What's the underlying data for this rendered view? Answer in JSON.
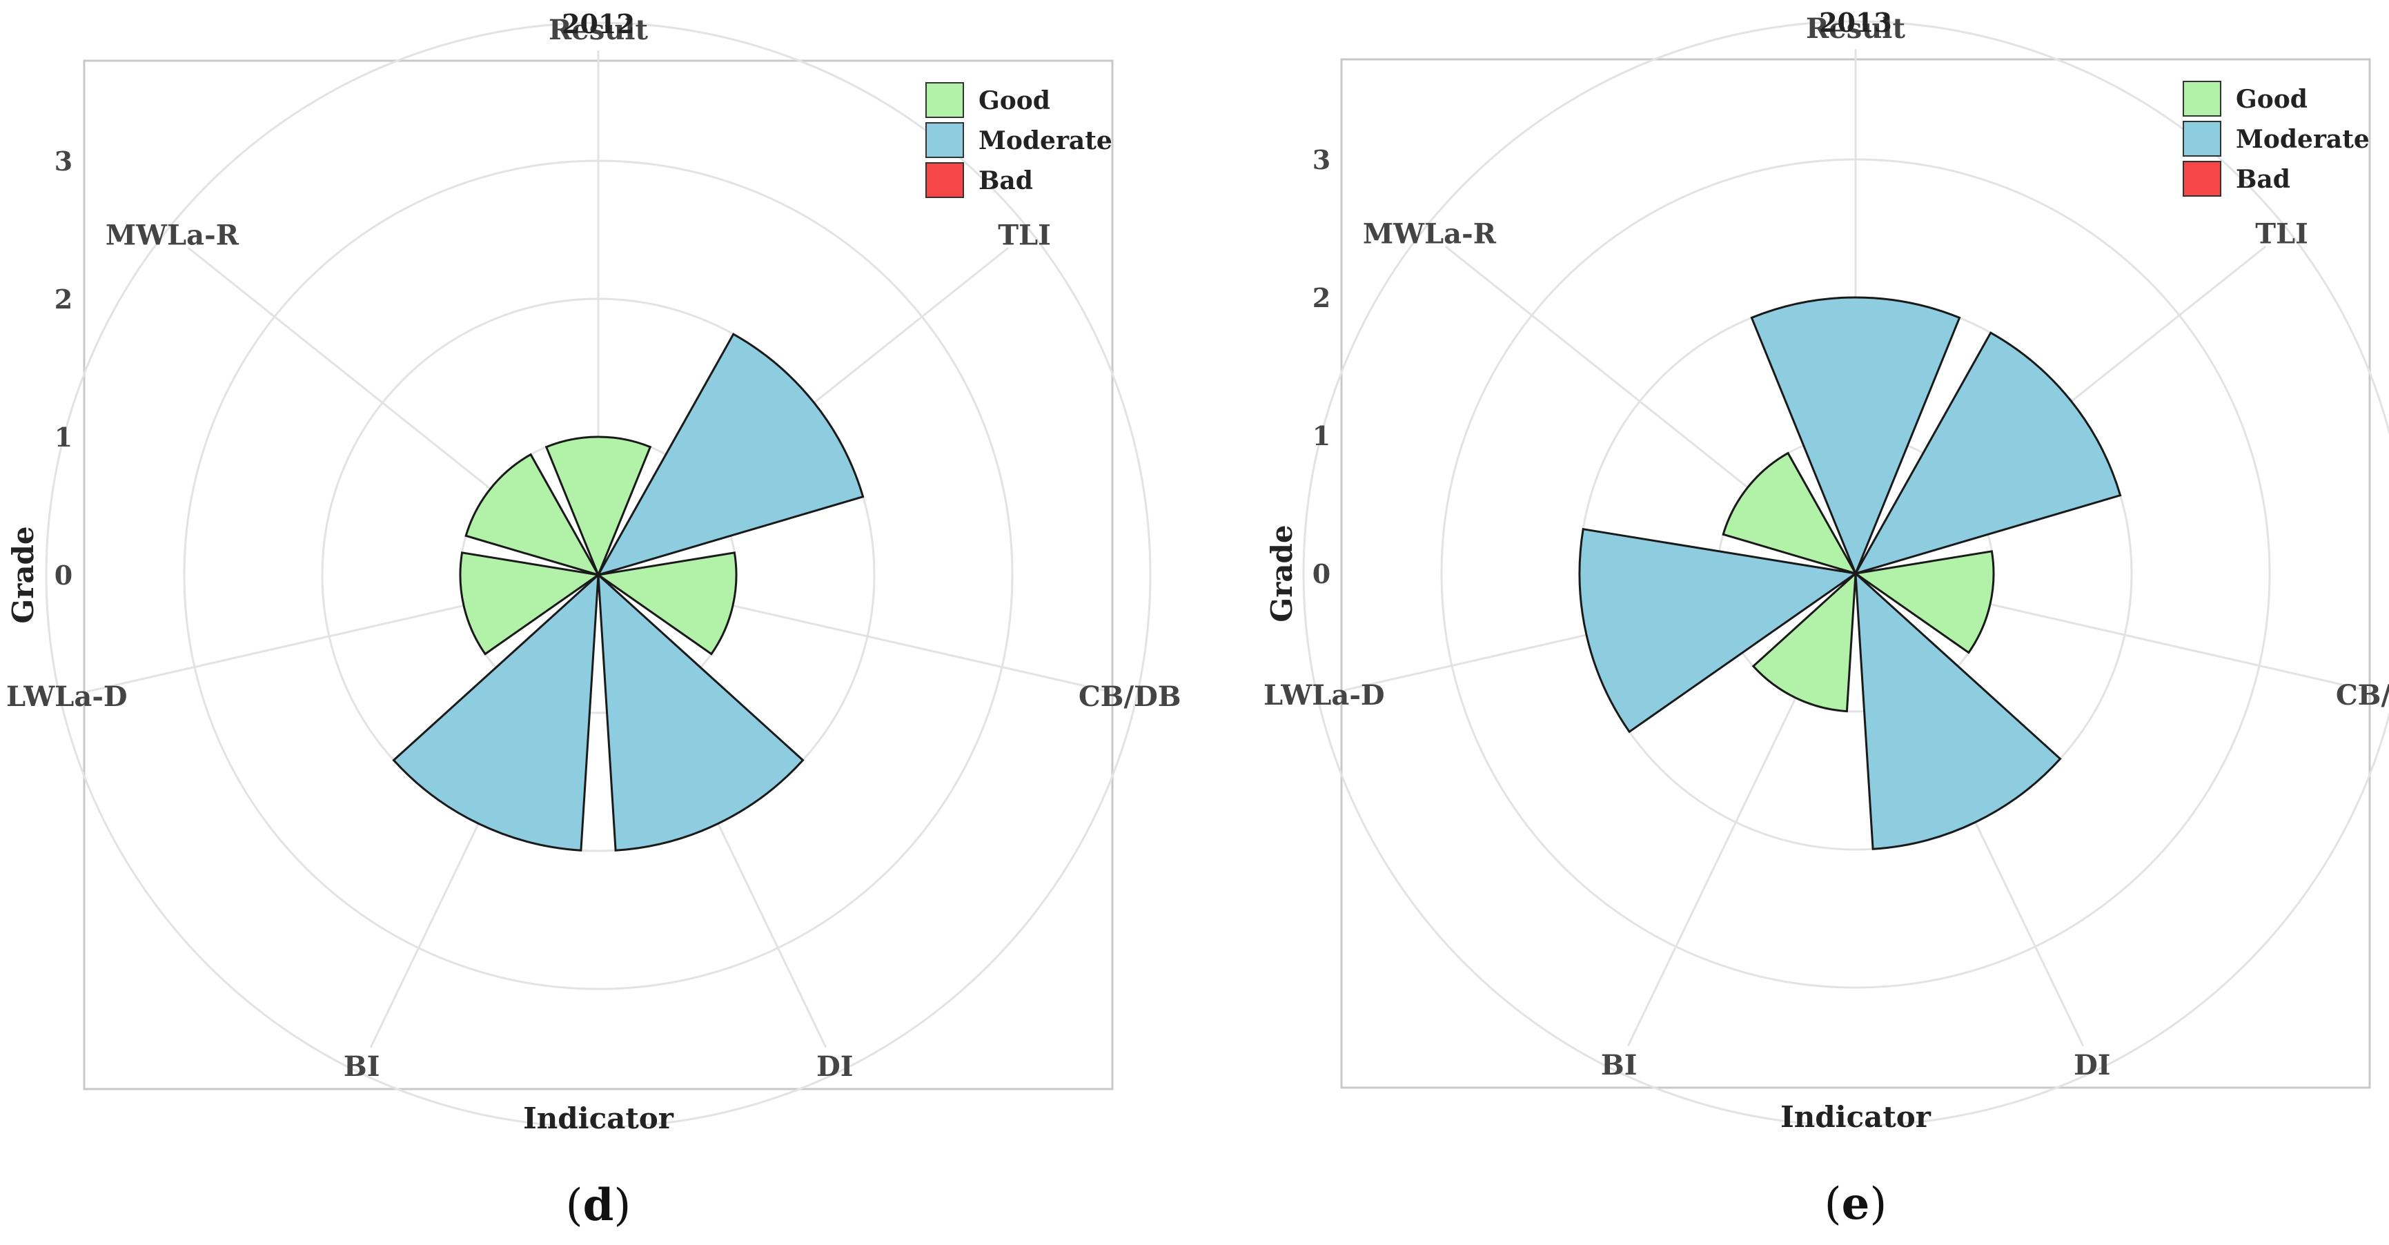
{
  "chart_data": [
    {
      "type": "polar-bar",
      "title": "2012",
      "xlabel": "Indicator",
      "ylabel": "Grade",
      "yticks": [
        "0",
        "1",
        "2",
        "3"
      ],
      "ylim": [
        0,
        3
      ],
      "categories": [
        "Result",
        "TLI",
        "CB/DB",
        "DI",
        "BI",
        "LWLa-D",
        "MWLa-R"
      ],
      "values": [
        1,
        2,
        1,
        2,
        2,
        1,
        1
      ],
      "grades": [
        "Good",
        "Moderate",
        "Good",
        "Moderate",
        "Moderate",
        "Good",
        "Good"
      ],
      "legend": [
        "Good",
        "Moderate",
        "Bad"
      ],
      "caption": "d"
    },
    {
      "type": "polar-bar",
      "title": "2013",
      "xlabel": "Indicator",
      "ylabel": "Grade",
      "yticks": [
        "0",
        "1",
        "2",
        "3"
      ],
      "ylim": [
        0,
        3
      ],
      "categories": [
        "Result",
        "TLI",
        "CB/DB",
        "DI",
        "BI",
        "LWLa-D",
        "MWLa-R"
      ],
      "values": [
        2,
        2,
        1,
        2,
        1,
        2,
        1
      ],
      "grades": [
        "Moderate",
        "Moderate",
        "Good",
        "Moderate",
        "Good",
        "Moderate",
        "Good"
      ],
      "legend": [
        "Good",
        "Moderate",
        "Bad"
      ],
      "caption": "e"
    }
  ],
  "colors": {
    "Good": "#b2f2a8",
    "Moderate": "#8ecde0",
    "Bad": "#f54747"
  }
}
